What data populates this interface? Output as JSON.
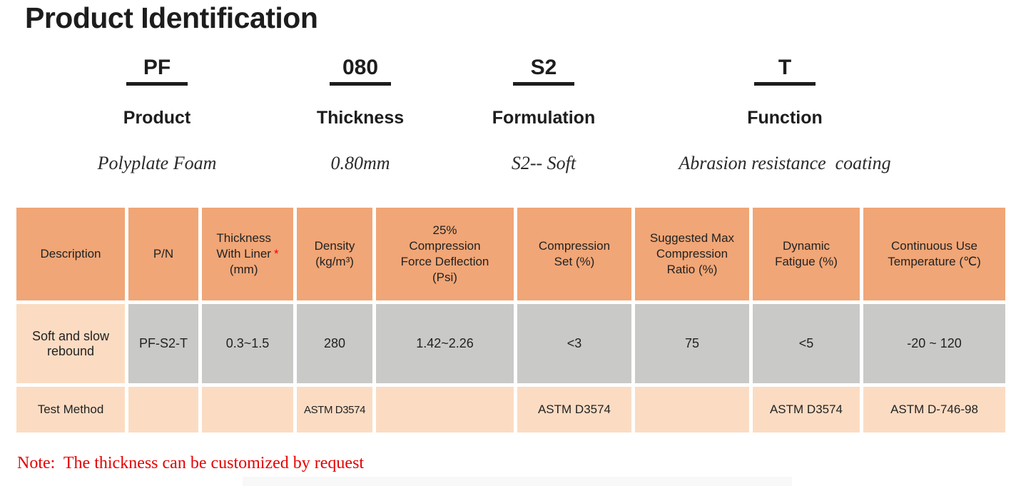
{
  "page": {
    "title": "Product Identification"
  },
  "code_breakdown": {
    "columns": [
      {
        "code": "PF",
        "label": "Product",
        "description": "Polyplate Foam"
      },
      {
        "code": "080",
        "label": "Thickness",
        "description": "0.80mm"
      },
      {
        "code": "S2",
        "label": "Formulation",
        "description": "S2-- Soft"
      },
      {
        "code": "T",
        "label": "Function",
        "description": "Abrasion resistance  coating"
      }
    ]
  },
  "table": {
    "headers": [
      "Description",
      "P/N",
      "Thickness\nWith Liner\n(mm)",
      "Density\n(kg/m³)",
      "25%\nCompression\nForce Deflection\n(Psi)",
      "Compression\nSet (%)",
      "Suggested Max\nCompression\nRatio (%)",
      "Dynamic\nFatigue (%)",
      "Continuous Use\nTemperature (℃)"
    ],
    "thickness_asterisk": "*",
    "rows": [
      {
        "name": "Soft and slow rebound",
        "values": [
          "PF-S2-T",
          "0.3~1.5",
          "280",
          "1.42~2.26",
          "<3",
          "75",
          "<5",
          "-20 ~ 120"
        ]
      },
      {
        "name": "Test Method",
        "values": [
          "",
          "",
          "ASTM D3574",
          "",
          "ASTM D3574",
          "",
          "ASTM D3574",
          "ASTM D-746-98"
        ]
      }
    ]
  },
  "note": "Note:  The thickness can be customized by request",
  "colors": {
    "header_orange": "#f0a677",
    "cell_gray": "#c9c9c7",
    "cell_peach": "#fbdcc3",
    "note_red": "#e50000",
    "asterisk_red": "#ff0000",
    "text_black": "#1d1d1d"
  }
}
